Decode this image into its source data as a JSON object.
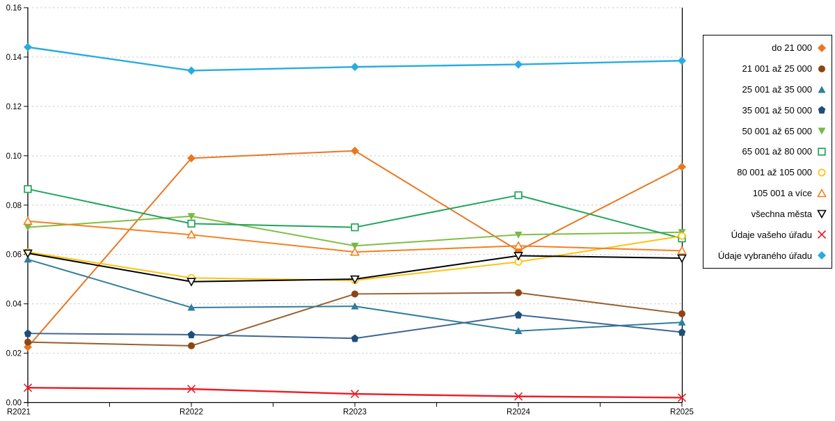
{
  "chart_data": {
    "type": "line",
    "title": "",
    "xlabel": "",
    "ylabel": "",
    "x_categories": [
      "R2021",
      "R2022",
      "R2023",
      "R2024",
      "R2025"
    ],
    "ylim": [
      0,
      0.16
    ],
    "y_tick_step": 0.02,
    "y_tick_labels": [
      "0.00",
      "0.02",
      "0.04",
      "0.06",
      "0.08",
      "0.10",
      "0.12",
      "0.14",
      "0.16"
    ],
    "grid": "horizontal dashed gridlines",
    "legend_position": "right",
    "series": [
      {
        "name": "do 21 000",
        "color": "#E87722",
        "marker": "diamond",
        "marker_color": "#E87722",
        "values": [
          0.0225,
          0.099,
          0.102,
          0.0615,
          0.0955
        ]
      },
      {
        "name": "21 001 až 25 000",
        "color": "#965F2D",
        "marker": "circle",
        "marker_color": "#8B4513",
        "values": [
          0.0245,
          0.023,
          0.044,
          0.0445,
          0.036
        ]
      },
      {
        "name": "25 001 až 35 000",
        "color": "#2F7E9A",
        "marker": "triangle-up",
        "marker_color": "#2F7E9A",
        "values": [
          0.058,
          0.0385,
          0.039,
          0.029,
          0.0325
        ]
      },
      {
        "name": "35 001 až 50 000",
        "color": "#3E6691",
        "marker": "pentagon",
        "marker_color": "#1F4E79",
        "values": [
          0.028,
          0.0275,
          0.026,
          0.0355,
          0.0285
        ]
      },
      {
        "name": "50 001 až 65 000",
        "color": "#7FBE42",
        "marker": "triangle-down",
        "marker_color": "#76B947",
        "values": [
          0.071,
          0.0755,
          0.0635,
          0.068,
          0.069
        ]
      },
      {
        "name": "65 001 až 80 000",
        "color": "#1FA45B",
        "marker": "square-open",
        "marker_color": "#1FA45B",
        "values": [
          0.0865,
          0.0725,
          0.071,
          0.084,
          0.0665
        ]
      },
      {
        "name": "80 001 až 105 000",
        "color": "#FFC20E",
        "marker": "circle-open",
        "marker_color": "#FFC20E",
        "values": [
          0.061,
          0.0505,
          0.0495,
          0.057,
          0.0675
        ]
      },
      {
        "name": "105 001 a více",
        "color": "#F3801E",
        "marker": "triangle-up-open",
        "marker_color": "#F3801E",
        "values": [
          0.0735,
          0.068,
          0.061,
          0.0635,
          0.0615
        ]
      },
      {
        "name": "všechna města",
        "color": "#000000",
        "marker": "triangle-down-open",
        "marker_color": "#000000",
        "values": [
          0.0605,
          0.049,
          0.05,
          0.0595,
          0.0585
        ]
      },
      {
        "name": "Údaje vašeho úřadu",
        "color": "#ED1C24",
        "marker": "x",
        "marker_color": "#ED1C24",
        "values": [
          0.006,
          0.0055,
          0.0035,
          0.0025,
          0.002
        ]
      },
      {
        "name": "Údaje vybraného úřadu",
        "color": "#29ABE2",
        "marker": "diamond",
        "marker_color": "#29ABE2",
        "values": [
          0.144,
          0.1345,
          0.136,
          0.137,
          0.1385
        ]
      }
    ]
  },
  "colors": {
    "axis": "#000000",
    "gridline": "#C9C9C9",
    "background": "#FFFFFF"
  }
}
